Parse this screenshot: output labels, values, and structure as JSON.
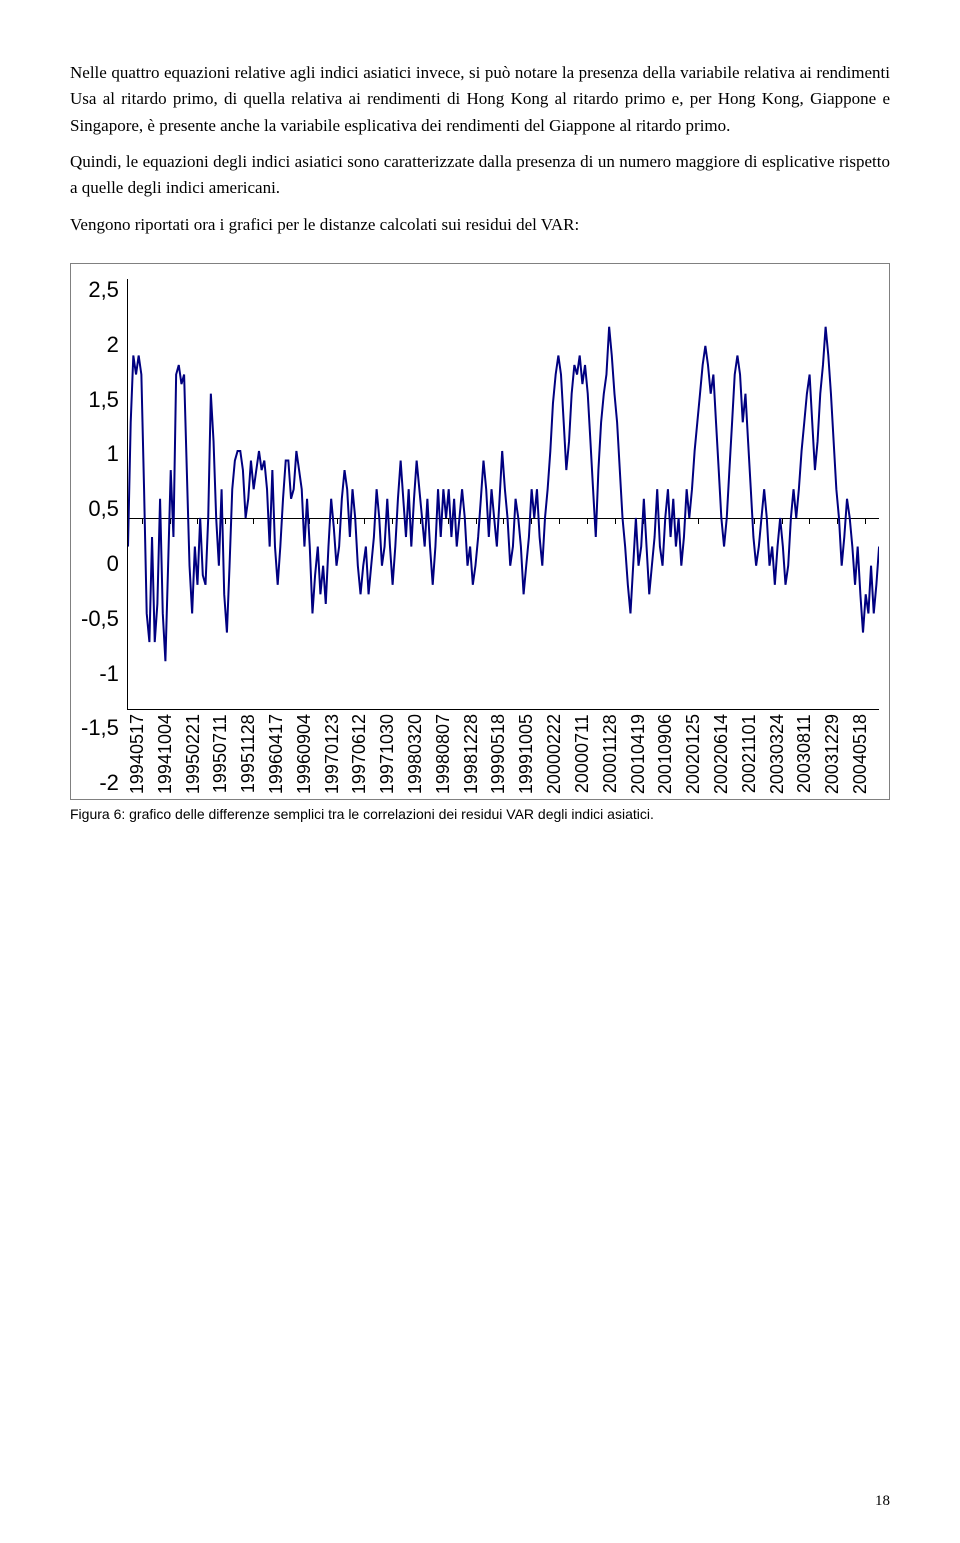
{
  "paragraphs": {
    "p1": "Nelle quattro equazioni relative agli indici asiatici invece, si può notare la presenza della variabile relativa ai rendimenti Usa al ritardo primo, di quella relativa ai rendimenti di Hong Kong al ritardo primo e, per Hong Kong, Giappone e Singapore, è presente anche la variabile esplicativa dei rendimenti del Giappone al ritardo primo.",
    "p2": "Quindi, le equazioni degli indici asiatici sono caratterizzate dalla presenza di un numero maggiore di esplicative rispetto a quelle degli indici americani.",
    "p3": "Vengono riportati ora i grafici per le distanze calcolati sui residui del VAR:"
  },
  "chart": {
    "type": "line",
    "ylim": [
      -2,
      2.5
    ],
    "ytick_step": 0.5,
    "yticks": [
      "2,5",
      "2",
      "1,5",
      "1",
      "0,5",
      "0",
      "-0,5",
      "-1",
      "-1,5",
      "-2"
    ],
    "zero_fraction_from_top": 0.5556,
    "line_color": "#000080",
    "line_width": 2,
    "axis_color": "#000000",
    "background_color": "#ffffff",
    "border_color": "#808080",
    "font_family_axes": "Arial",
    "y_label_fontsize": 22,
    "x_label_fontsize": 18,
    "x_labels": [
      "19940517",
      "19941004",
      "19950221",
      "19950711",
      "19951128",
      "19960417",
      "19960904",
      "19970123",
      "19970612",
      "19971030",
      "19980320",
      "19980807",
      "19981228",
      "19990518",
      "19991005",
      "20000222",
      "20000711",
      "20001128",
      "20010419",
      "20010906",
      "20020125",
      "20020614",
      "20021101",
      "20030324",
      "20030811",
      "20031229",
      "20040518"
    ],
    "series": [
      -0.3,
      1.0,
      1.7,
      1.5,
      1.7,
      1.5,
      0.3,
      -1.0,
      -1.3,
      -0.2,
      -1.3,
      -0.9,
      0.2,
      -1.0,
      -1.5,
      -0.5,
      0.5,
      -0.2,
      1.5,
      1.6,
      1.4,
      1.5,
      0.5,
      -0.5,
      -1.0,
      -0.3,
      -0.7,
      0.0,
      -0.6,
      -0.7,
      0.0,
      1.3,
      0.8,
      0.0,
      -0.5,
      0.3,
      -0.8,
      -1.2,
      -0.5,
      0.3,
      0.6,
      0.7,
      0.7,
      0.5,
      0.0,
      0.2,
      0.6,
      0.3,
      0.5,
      0.7,
      0.5,
      0.6,
      0.3,
      -0.3,
      0.5,
      -0.3,
      -0.7,
      -0.3,
      0.2,
      0.6,
      0.6,
      0.2,
      0.3,
      0.7,
      0.5,
      0.3,
      -0.3,
      0.2,
      -0.3,
      -1.0,
      -0.6,
      -0.3,
      -0.8,
      -0.5,
      -0.9,
      -0.3,
      0.2,
      -0.1,
      -0.5,
      -0.3,
      0.2,
      0.5,
      0.3,
      -0.2,
      0.3,
      0.0,
      -0.5,
      -0.8,
      -0.5,
      -0.3,
      -0.8,
      -0.5,
      -0.2,
      0.3,
      0.0,
      -0.5,
      -0.3,
      0.2,
      -0.3,
      -0.7,
      -0.3,
      0.2,
      0.6,
      0.2,
      -0.2,
      0.3,
      -0.3,
      0.2,
      0.6,
      0.3,
      0.0,
      -0.3,
      0.2,
      -0.3,
      -0.7,
      -0.3,
      0.3,
      -0.2,
      0.3,
      0.0,
      0.3,
      -0.2,
      0.2,
      -0.3,
      0.0,
      0.3,
      0.0,
      -0.5,
      -0.3,
      -0.7,
      -0.5,
      -0.2,
      0.2,
      0.6,
      0.3,
      -0.2,
      0.3,
      0.0,
      -0.3,
      0.2,
      0.7,
      0.3,
      0.0,
      -0.5,
      -0.3,
      0.2,
      0.0,
      -0.3,
      -0.8,
      -0.5,
      -0.2,
      0.3,
      0.0,
      0.3,
      -0.2,
      -0.5,
      0.0,
      0.3,
      0.7,
      1.2,
      1.5,
      1.7,
      1.5,
      1.0,
      0.5,
      0.8,
      1.3,
      1.6,
      1.5,
      1.7,
      1.4,
      1.6,
      1.3,
      0.8,
      0.3,
      -0.2,
      0.5,
      1.0,
      1.3,
      1.5,
      2.0,
      1.7,
      1.3,
      1.0,
      0.5,
      0.0,
      -0.3,
      -0.7,
      -1.0,
      -0.5,
      0.0,
      -0.5,
      -0.3,
      0.2,
      -0.3,
      -0.8,
      -0.5,
      -0.2,
      0.3,
      -0.3,
      -0.5,
      0.0,
      0.3,
      -0.2,
      0.2,
      -0.3,
      0.0,
      -0.5,
      -0.2,
      0.3,
      0.0,
      0.3,
      0.7,
      1.0,
      1.3,
      1.6,
      1.8,
      1.6,
      1.3,
      1.5,
      1.0,
      0.5,
      0.0,
      -0.3,
      0.0,
      0.5,
      1.0,
      1.5,
      1.7,
      1.5,
      1.0,
      1.3,
      0.8,
      0.3,
      -0.2,
      -0.5,
      -0.3,
      0.0,
      0.3,
      0.0,
      -0.5,
      -0.3,
      -0.7,
      -0.3,
      0.0,
      -0.3,
      -0.7,
      -0.5,
      0.0,
      0.3,
      0.0,
      0.3,
      0.7,
      1.0,
      1.3,
      1.5,
      1.0,
      0.5,
      0.8,
      1.3,
      1.6,
      2.0,
      1.7,
      1.3,
      0.8,
      0.3,
      0.0,
      -0.5,
      -0.2,
      0.2,
      0.0,
      -0.3,
      -0.7,
      -0.3,
      -0.8,
      -1.2,
      -0.8,
      -1.0,
      -0.5,
      -1.0,
      -0.7,
      -0.3
    ]
  },
  "caption": "Figura 6: grafico delle differenze semplici tra le correlazioni dei residui VAR degli indici asiatici.",
  "page_number": "18"
}
